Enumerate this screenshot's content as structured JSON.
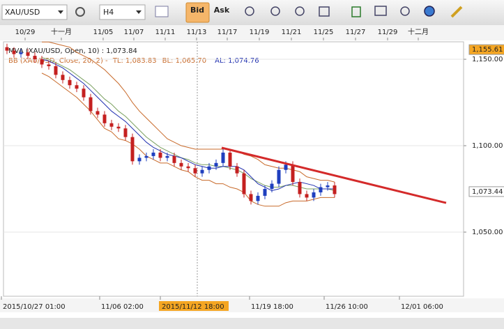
{
  "chart_data": {
    "type": "candlestick",
    "toolbar": {
      "symbol": "XAU/USD",
      "timeframe": "H4",
      "bid": "Bid",
      "ask": "Ask"
    },
    "legend": {
      "mva": "MVA (XAU/USD, Open, 10) : 1,073.84",
      "bb": "BB (XAU/USD, Close, 20, 2) - ",
      "tl": "TL: 1,083.83",
      "bl": "BL: 1,065.70",
      "al": "AL: 1,074.76"
    },
    "open": [
      1157,
      1155,
      1153,
      1154,
      1152,
      1150,
      1147,
      1146,
      1141,
      1138,
      1135,
      1133,
      1128,
      1120,
      1118,
      1113,
      1111,
      1110,
      1105,
      1091,
      1093,
      1094,
      1096,
      1093,
      1094,
      1090,
      1088,
      1087,
      1084,
      1086,
      1088,
      1090,
      1096,
      1088,
      1084,
      1072,
      1068,
      1071,
      1075,
      1078,
      1086,
      1089,
      1079,
      1072,
      1070,
      1073,
      1076,
      1077
    ],
    "high": [
      1159,
      1157,
      1156,
      1156,
      1154,
      1152,
      1149,
      1148,
      1143,
      1140,
      1137,
      1135,
      1130,
      1122,
      1120,
      1115,
      1113,
      1112,
      1107,
      1095,
      1096,
      1098,
      1098,
      1096,
      1096,
      1092,
      1090,
      1089,
      1088,
      1090,
      1092,
      1099,
      1098,
      1090,
      1086,
      1074,
      1073,
      1077,
      1080,
      1088,
      1091,
      1091,
      1081,
      1074,
      1075,
      1078,
      1079,
      1079
    ],
    "low": [
      1153,
      1151,
      1151,
      1150,
      1148,
      1145,
      1144,
      1139,
      1136,
      1133,
      1131,
      1126,
      1118,
      1116,
      1111,
      1109,
      1108,
      1103,
      1089,
      1089,
      1091,
      1092,
      1091,
      1091,
      1088,
      1086,
      1085,
      1082,
      1082,
      1084,
      1086,
      1088,
      1086,
      1082,
      1070,
      1066,
      1066,
      1069,
      1073,
      1076,
      1084,
      1077,
      1070,
      1068,
      1068,
      1071,
      1074,
      1070
    ],
    "close": [
      1155,
      1153,
      1154,
      1152,
      1150,
      1147,
      1146,
      1141,
      1138,
      1135,
      1133,
      1128,
      1120,
      1118,
      1113,
      1111,
      1110,
      1105,
      1091,
      1093,
      1094,
      1096,
      1093,
      1094,
      1090,
      1088,
      1087,
      1084,
      1086,
      1088,
      1090,
      1096,
      1088,
      1084,
      1072,
      1068,
      1071,
      1075,
      1078,
      1086,
      1089,
      1079,
      1072,
      1070,
      1073,
      1076,
      1077,
      1072
    ],
    "up_color": "#1f3fbf",
    "down_color": "#c42020",
    "overlays": [
      {
        "color": "#c86a2a",
        "values": [
          null,
          null,
          null,
          null,
          null,
          1160,
          1160,
          1159,
          1158,
          1157,
          1154,
          1152,
          1150,
          1147,
          1144,
          1140,
          1136,
          1131,
          1125,
          1120,
          1116,
          1112,
          1108,
          1104,
          1102,
          1100,
          1099,
          1098,
          1098,
          1098,
          1098,
          1098,
          1098,
          1097,
          1095,
          1094,
          1092,
          1089,
          1088,
          1087,
          1087,
          1086,
          1085,
          1082,
          1081,
          1080,
          1080,
          1079
        ]
      },
      {
        "color": "#c86a2a",
        "values": [
          null,
          null,
          null,
          null,
          null,
          1142,
          1140,
          1137,
          1134,
          1131,
          1128,
          1124,
          1120,
          1115,
          1110,
          1108,
          1104,
          1103,
          1101,
          1098,
          1094,
          1092,
          1090,
          1090,
          1088,
          1086,
          1085,
          1082,
          1080,
          1080,
          1078,
          1078,
          1076,
          1075,
          1073,
          1068,
          1066,
          1065,
          1065,
          1065,
          1067,
          1068,
          1068,
          1068,
          1069,
          1070,
          1070,
          1070
        ]
      },
      {
        "color": "#7aa060",
        "values": [
          null,
          null,
          null,
          null,
          null,
          1151,
          1150,
          1148,
          1146,
          1144,
          1141,
          1138,
          1135,
          1131,
          1127,
          1124,
          1120,
          1117,
          1113,
          1109,
          1105,
          1102,
          1099,
          1097,
          1095,
          1093,
          1092,
          1090,
          1089,
          1089,
          1088,
          1088,
          1087,
          1086,
          1084,
          1081,
          1079,
          1077,
          1076,
          1076,
          1077,
          1077,
          1076,
          1075,
          1075,
          1075,
          1075,
          1074
        ]
      },
      {
        "color": "#2030b0",
        "values": [
          null,
          null,
          null,
          null,
          null,
          1150,
          1149,
          1147,
          1145,
          1142,
          1139,
          1136,
          1132,
          1128,
          1124,
          1120,
          1117,
          1114,
          1110,
          1106,
          1102,
          1099,
          1097,
          1095,
          1094,
          1093,
          1091,
          1089,
          1088,
          1087,
          1087,
          1088,
          1088,
          1088,
          1086,
          1082,
          1078,
          1076,
          1074,
          1075,
          1077,
          1078,
          1079,
          1078,
          1077,
          1075,
          1075,
          1075
        ]
      }
    ],
    "trendline": {
      "x": [
        30.8,
        63
      ],
      "values": [
        1098.8,
        1066.9
      ],
      "color": "#d42a2a"
    },
    "xlim": [
      -0.5,
      65.5
    ],
    "ylim": [
      1012.9,
      1160.1
    ],
    "yticks": [
      {
        "value": 1150,
        "label": "1,150.00"
      },
      {
        "value": 1100,
        "label": "1,100.00"
      },
      {
        "value": 1050,
        "label": "1,050.00"
      }
    ],
    "price_markers": [
      {
        "value": 1155.61,
        "label": "1,155.61",
        "color": "#f5a623"
      },
      {
        "value": 1073.44,
        "label": "1,073.44",
        "color": "#ffffff"
      }
    ],
    "top_axis": {
      "labels": [
        "10/29",
        "十一月",
        "11/05",
        "11/07",
        "11/11",
        "11/13",
        "11/17",
        "11/19",
        "11/21",
        "11/25",
        "11/27",
        "11/29",
        "十二月"
      ],
      "x": [
        2.6,
        7.8,
        13.8,
        18.2,
        22.7,
        27.2,
        31.6,
        36.2,
        40.8,
        45.4,
        50,
        54.6,
        59
      ]
    },
    "bottom_axis": {
      "labels": [
        "2015/10/27 01:00",
        "11/06 02:00",
        "2015/11/12 18:00",
        "11/19 18:00",
        "11/26 10:00",
        "12/01 06:00"
      ],
      "x": [
        -0.8,
        13.3,
        22,
        34.8,
        45.5,
        56.3
      ],
      "highlight": [
        false,
        false,
        true,
        false,
        false,
        false
      ]
    },
    "crosshair_x": 27.3,
    "grid": true
  }
}
